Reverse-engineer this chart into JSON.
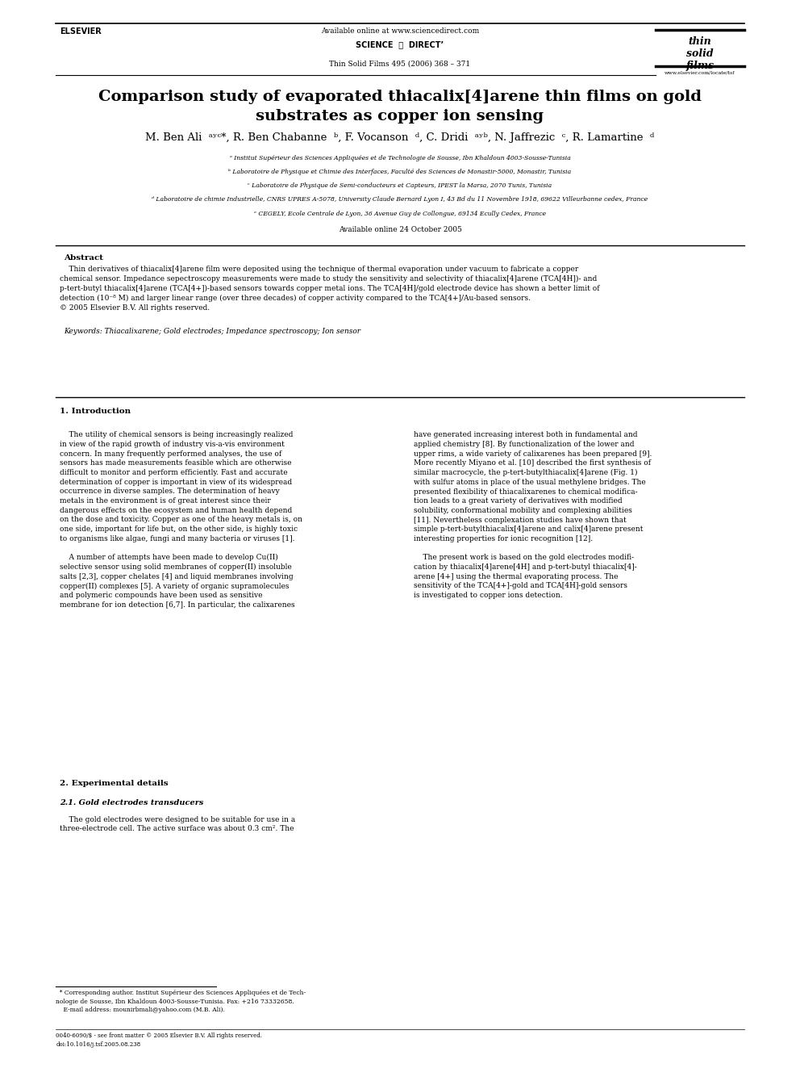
{
  "bg_color": "#ffffff",
  "page_width": 9.92,
  "page_height": 13.23,
  "header_available_online": "Available online at www.sciencedirect.com",
  "header_sciencedirect": "SCIENCE  ⓓ  DIRECT’",
  "header_journal_ref": "Thin Solid Films 495 (2006) 368 – 371",
  "header_website": "www.elsevier.com/locate/tsf",
  "header_journal_logo": "thin\nsolid\nfilms",
  "header_elsevier": "ELSEVIER",
  "title": "Comparison study of evaporated thiacalix[4]arene thin films on gold\nsubstrates as copper ion sensing",
  "authors_line": "M. Ben Ali  ᵃʸᶜ*, R. Ben Chabanne  ᵇ, F. Vocanson  ᵈ, C. Dridi  ᵃʸᵇ, N. Jaffrezic  ᶜ, R. Lamartine  ᵈ",
  "affiliations": [
    "ᵃ Institut Supérieur des Sciences Appliquées et de Technologie de Sousse, Ibn Khaldoun 4003-Sousse-Tunisia",
    "ᵇ Laboratoire de Physique et Chimie des Interfaces, Faculté des Sciences de Monastir-5000, Monastir, Tunisia",
    "ᶜ Laboratoire de Physique de Semi-conducteurs et Capteurs, IPEST la Marsa, 2070 Tunis, Tunisia",
    "ᵈ Laboratoire de chimie Industrielle, CNRS UPRES A-5078, University Claude Bernard Lyon I, 43 Bd du 11 Novembre 1918, 69622 Villeurbanne cedex, France",
    "ᵉ CEGELY, Ecole Centrale de Lyon, 36 Avenue Guy de Collongue, 69134 Ecully Cedex, France"
  ],
  "available_online_date": "Available online 24 October 2005",
  "abstract_title": "Abstract",
  "abstract_body": "    Thin derivatives of thiacalix[4]arene film were deposited using the technique of thermal evaporation under vacuum to fabricate a copper\nchemical sensor. Impedance sepectroscopy measurements were made to study the sensitivity and selectivity of thiacalix[4]arene (TCA[4H])- and\np-tert-butyl thiacalix[4]arene (TCA[4+])-based sensors towards copper metal ions. The TCA[4H]/gold electrode device has shown a better limit of\ndetection (10⁻⁸ M) and larger linear range (over three decades) of copper activity compared to the TCA[4+]/Au-based sensors.\n© 2005 Elsevier B.V. All rights reserved.",
  "keywords_line": "Keywords: Thiacalixarene; Gold electrodes; Impedance spectroscopy; Ion sensor",
  "section1_title": "1. Introduction",
  "section1_col1": "    The utility of chemical sensors is being increasingly realized\nin view of the rapid growth of industry vis-a-vis environment\nconcern. In many frequently performed analyses, the use of\nsensors has made measurements feasible which are otherwise\ndifficult to monitor and perform efficiently. Fast and accurate\ndetermination of copper is important in view of its widespread\noccurrence in diverse samples. The determination of heavy\nmetals in the environment is of great interest since their\ndangerous effects on the ecosystem and human health depend\non the dose and toxicity. Copper as one of the heavy metals is, on\none side, important for life but, on the other side, is highly toxic\nto organisms like algae, fungi and many bacteria or viruses [1].\n\n    A number of attempts have been made to develop Cu(II)\nselective sensor using solid membranes of copper(II) insoluble\nsalts [2,3], copper chelates [4] and liquid membranes involving\ncopper(II) complexes [5]. A variety of organic supramolecules\nand polymeric compounds have been used as sensitive\nmembrane for ion detection [6,7]. In particular, the calixarenes",
  "section1_col2": "have generated increasing interest both in fundamental and\napplied chemistry [8]. By functionalization of the lower and\nupper rims, a wide variety of calixarenes has been prepared [9].\nMore recently Miyano et al. [10] described the first synthesis of\nsimilar macrocycle, the p-tert-butylthiacalix[4]arene (Fig. 1)\nwith sulfur atoms in place of the usual methylene bridges. The\npresented flexibility of thiacalixarenes to chemical modifica-\ntion leads to a great variety of derivatives with modified\nsolubility, conformational mobility and complexing abilities\n[11]. Nevertheless complexation studies have shown that\nsimple p-tert-butylthiacalix[4]arene and calix[4]arene present\ninteresting properties for ionic recognition [12].\n\n    The present work is based on the gold electrodes modifi-\ncation by thiacalix[4]arene[4H] and p-tert-butyl thiacalix[4]-\narene [4+] using the thermal evaporating process. The\nsensitivity of the TCA[4+]-gold and TCA[4H]-gold sensors\nis investigated to copper ions detection.",
  "section2_title": "2. Experimental details",
  "section2_1_title": "2.1. Gold electrodes transducers",
  "section2_1_text": "    The gold electrodes were designed to be suitable for use in a\nthree-electrode cell. The active surface was about 0.3 cm². The",
  "footnote_text": "  * Corresponding author. Institut Supérieur des Sciences Appliquées et de Tech-\nnologie de Sousse, Ibn Khaldoun 4003-Sousse-Tunisia. Fax: +216 73332658.\n    E-mail address: mounirbmali@yahoo.com (M.B. Ali).",
  "footer_text": "0040-6090/$ - see front matter © 2005 Elsevier B.V. All rights reserved.\ndoi:10.1016/j.tsf.2005.08.238"
}
